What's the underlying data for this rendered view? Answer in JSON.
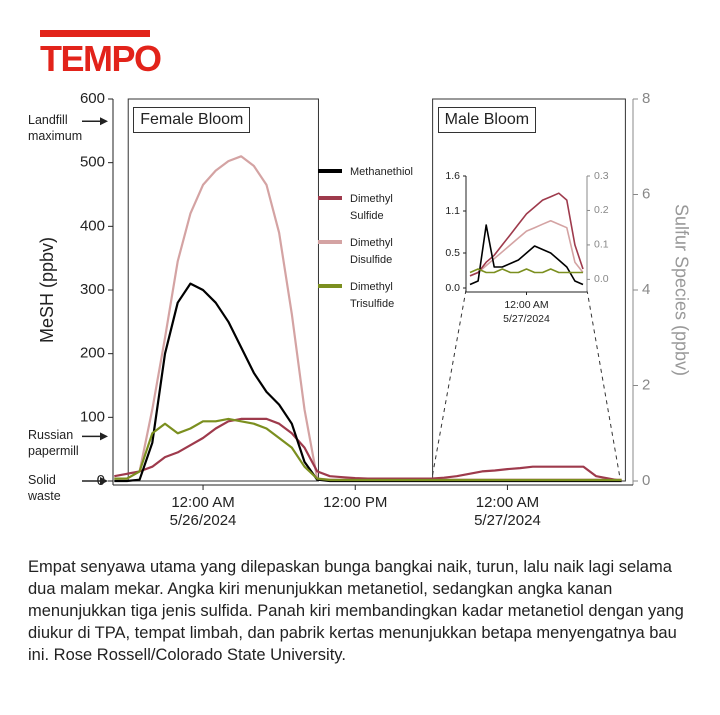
{
  "logo": "TEMPO",
  "caption": "Empat senyawa utama yang dilepaskan bunga bangkai naik, turun, lalu naik lagi selama dua malam mekar. Angka kiri menunjukkan metanetiol, sedangkan angka kanan menunjukkan tiga jenis sulfida. Panah kiri membandingkan kadar metanetiol dengan yang diukur di TPA, tempat limbah, dan pabrik kertas menunjukkan betapa menyengatnya bau ini. Rose Rossell/Colorado State University.",
  "chart_data": [
    {
      "type": "line",
      "y_label": "MeSH (ppbv)",
      "y2_label": "Sulfur Species (ppbv)",
      "legend": "center",
      "x": [
        -7,
        -6,
        -5,
        -4,
        -3,
        -2,
        -1,
        0,
        1,
        2,
        3,
        4,
        5,
        6,
        7,
        8,
        9,
        10,
        11,
        12,
        13,
        14,
        15,
        16,
        17,
        18,
        19,
        20,
        21,
        22,
        23,
        24,
        25,
        26,
        27,
        28,
        29,
        30,
        31,
        32,
        33
      ],
      "xlim": [
        -7.1,
        33.9
      ],
      "xticks": [
        {
          "value": 0,
          "label": "12:00 AM 5/26/2024"
        },
        {
          "value": 12,
          "label": "12:00 PM"
        },
        {
          "value": 24,
          "label": "12:00 AM 5/27/2024"
        }
      ],
      "ylim": [
        0,
        600
      ],
      "yticks": [
        0,
        100,
        200,
        300,
        400,
        500,
        600
      ],
      "y2lim": [
        0,
        8
      ],
      "y2ticks": [
        0,
        2,
        4,
        6,
        8
      ],
      "regions": [
        {
          "label": "Female Bloom",
          "x": [
            -5.9,
            9.1
          ]
        },
        {
          "label": "Male Bloom",
          "x": [
            18.1,
            33.3
          ]
        }
      ],
      "annotations": [
        {
          "text": "Landfill maximum",
          "value": 565
        },
        {
          "text": "Russian papermill",
          "value": 70
        },
        {
          "text": "Solid waste",
          "value": 0
        }
      ],
      "series": [
        {
          "name": "Dimethyl Disulfide",
          "color": "#d4a3a3",
          "axis": "y2",
          "values": [
            0.05,
            0.05,
            0.2,
            1.5,
            3.0,
            4.6,
            5.6,
            6.2,
            6.5,
            6.7,
            6.8,
            6.6,
            6.2,
            5.2,
            3.5,
            1.5,
            0.05,
            0.03,
            0.03,
            0.03,
            0.03,
            0.03,
            0.03,
            0.03,
            0.03,
            0.03,
            0.03,
            0.03,
            0.03,
            0.03,
            0.03,
            0.03,
            0.03,
            0.03,
            0.03,
            0.03,
            0.03,
            0.03,
            0.03,
            0.03,
            0.03
          ]
        },
        {
          "name": "Dimethyl Sulfide",
          "color": "#9e3a4c",
          "axis": "y2",
          "values": [
            0.1,
            0.15,
            0.2,
            0.3,
            0.5,
            0.6,
            0.75,
            0.9,
            1.1,
            1.25,
            1.3,
            1.3,
            1.3,
            1.2,
            1.0,
            0.7,
            0.2,
            0.1,
            0.08,
            0.06,
            0.05,
            0.05,
            0.05,
            0.05,
            0.05,
            0.05,
            0.07,
            0.1,
            0.15,
            0.2,
            0.22,
            0.25,
            0.27,
            0.3,
            0.3,
            0.3,
            0.3,
            0.3,
            0.1,
            0.05,
            0
          ]
        },
        {
          "name": "Methanethiol",
          "color": "#000000",
          "values": [
            0,
            0,
            2,
            60,
            200,
            280,
            310,
            300,
            280,
            250,
            210,
            170,
            140,
            120,
            90,
            30,
            2,
            0,
            0,
            0,
            0,
            0,
            0,
            0,
            0,
            0,
            0,
            0,
            0,
            0,
            0,
            0,
            0,
            0,
            0,
            0,
            0,
            0,
            0,
            0,
            0
          ]
        },
        {
          "name": "Dimethyl Trisulfide",
          "color": "#7b8f1f",
          "axis": "y2",
          "values": [
            0.05,
            0.05,
            0.2,
            1.0,
            1.2,
            1.0,
            1.1,
            1.25,
            1.25,
            1.3,
            1.25,
            1.2,
            1.1,
            0.9,
            0.7,
            0.3,
            0.05,
            0.02,
            0.02,
            0.02,
            0.02,
            0.02,
            0.02,
            0.02,
            0.02,
            0.02,
            0.02,
            0.02,
            0.02,
            0.02,
            0.02,
            0.02,
            0.02,
            0.02,
            0.02,
            0.02,
            0.02,
            0.02,
            0.02,
            0.02,
            0.02
          ]
        }
      ]
    },
    {
      "type": "line",
      "x": [
        17,
        18,
        19,
        20,
        21,
        22,
        23,
        24,
        25,
        26,
        27,
        28,
        29,
        30,
        31
      ],
      "xlim": [
        16.5,
        31.5
      ],
      "xticks": [
        {
          "value": 24,
          "label": "12:00 AM 5/27/2024"
        }
      ],
      "ylim": [
        0,
        1.6
      ],
      "yticks": [
        {
          "value": 0,
          "label": "0.0"
        },
        0.5,
        1.1,
        1.6
      ],
      "y2lim": [
        -0.025,
        0.3
      ],
      "y2ticks": [
        {
          "value": 0,
          "label": "0.0"
        },
        0.1,
        0.2,
        0.3
      ],
      "series": [
        {
          "color": "#d4a3a3",
          "axis": "y2",
          "values": [
            0.01,
            0.02,
            0.04,
            0.06,
            0.08,
            0.1,
            0.12,
            0.14,
            0.15,
            0.16,
            0.17,
            0.16,
            0.15,
            0.05,
            0.02
          ]
        },
        {
          "color": "#9e3a4c",
          "axis": "y2",
          "values": [
            0.01,
            0.02,
            0.05,
            0.07,
            0.1,
            0.13,
            0.16,
            0.19,
            0.21,
            0.23,
            0.24,
            0.25,
            0.23,
            0.1,
            0.03
          ]
        },
        {
          "color": "#000000",
          "values": [
            0.05,
            0.1,
            0.9,
            0.3,
            0.3,
            0.35,
            0.4,
            0.5,
            0.6,
            0.55,
            0.5,
            0.4,
            0.3,
            0.1,
            0.05
          ]
        },
        {
          "color": "#7b8f1f",
          "axis": "y2",
          "values": [
            0.02,
            0.03,
            0.02,
            0.02,
            0.03,
            0.02,
            0.02,
            0.03,
            0.02,
            0.02,
            0.03,
            0.02,
            0.02,
            0.02,
            0.02
          ]
        }
      ]
    }
  ]
}
